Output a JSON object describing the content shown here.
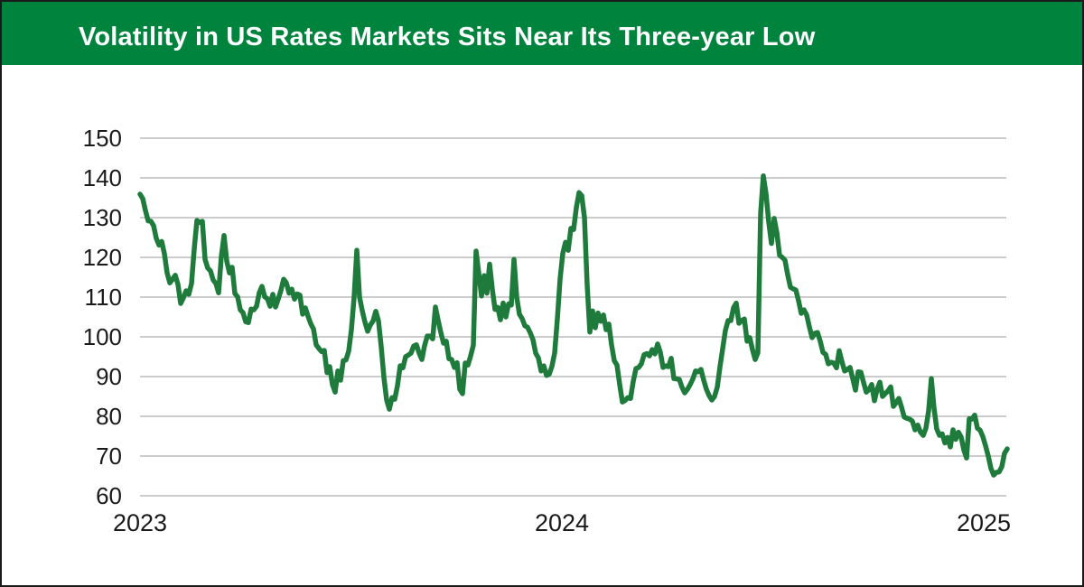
{
  "header": {
    "title": "Volatility in US Rates Markets Sits Near Its Three-year Low",
    "bg_color": "#00843D",
    "text_color": "#FFFFFF"
  },
  "chart_data": {
    "type": "line",
    "title": "Volatility in US Rates Markets Sits Near Its Three-year Low",
    "xlabel": "",
    "ylabel": "",
    "x_axis": {
      "ticks": [
        2023,
        2024,
        2025
      ]
    },
    "y_axis": {
      "ticks": [
        60,
        70,
        80,
        90,
        100,
        110,
        120,
        130,
        140,
        150
      ],
      "min": 60,
      "max": 150
    },
    "grid": {
      "horizontal": true,
      "vertical": false,
      "color": "#CCCCCC"
    },
    "legend": "none",
    "axis_text_color": "#1A1A1A",
    "series": {
      "color": "#1E7B3B",
      "x_start_year": 2023.0,
      "x_step_years": 0.006424,
      "values": [
        135.9,
        134.8,
        131.8,
        129.2,
        129.1,
        128.0,
        124.8,
        123.1,
        124.0,
        120.9,
        116.1,
        113.6,
        114.5,
        115.5,
        113.2,
        108.4,
        109.8,
        111.6,
        110.7,
        113.4,
        122.1,
        129.3,
        128.8,
        129.1,
        119.5,
        117.3,
        116.6,
        114.3,
        113.4,
        111.1,
        120.2,
        125.5,
        119.1,
        116.1,
        117.5,
        110.9,
        110.1,
        106.8,
        106.1,
        103.8,
        103.6,
        107.0,
        106.8,
        107.7,
        111.1,
        112.7,
        110.1,
        109.6,
        107.7,
        110.7,
        107.5,
        109.5,
        111.7,
        114.5,
        113.6,
        111.0,
        112.0,
        109.5,
        110.8,
        110.5,
        105.7,
        107.3,
        105.2,
        103.3,
        102.0,
        98.0,
        97.1,
        96.3,
        96.6,
        91.0,
        92.5,
        88.0,
        86.1,
        91.4,
        89.1,
        94.0,
        94.2,
        96.4,
        101.8,
        110.0,
        121.8,
        110.0,
        106.6,
        103.7,
        101.4,
        103.0,
        104.0,
        106.4,
        104.0,
        97.5,
        89.8,
        84.1,
        81.8,
        84.7,
        84.3,
        87.7,
        92.7,
        92.2,
        95.0,
        95.4,
        95.9,
        97.7,
        98.0,
        95.9,
        94.3,
        97.8,
        100.2,
        100.2,
        99.5,
        107.5,
        104.2,
        101.1,
        98.4,
        98.9,
        94.5,
        94.3,
        92.3,
        93.5,
        86.8,
        85.7,
        93.4,
        92.9,
        95.2,
        97.9,
        121.6,
        116.0,
        110.3,
        115.4,
        111.0,
        118.3,
        112.0,
        106.9,
        107.4,
        104.3,
        108.5,
        105.0,
        108.3,
        108.0,
        119.5,
        110.0,
        105.7,
        104.6,
        102.8,
        102.4,
        101.0,
        99.3,
        95.9,
        94.7,
        91.4,
        92.7,
        90.3,
        90.6,
        92.6,
        95.9,
        104.5,
        114.5,
        121.0,
        123.8,
        121.8,
        127.3,
        127.0,
        132.5,
        136.3,
        135.5,
        130.0,
        113.0,
        101.2,
        106.5,
        102.3,
        106.0,
        103.9,
        105.5,
        101.8,
        103.2,
        98.0,
        94.0,
        92.9,
        88.0,
        83.6,
        84.0,
        84.7,
        84.5,
        88.8,
        92.0,
        92.3,
        93.2,
        95.5,
        95.8,
        95.2,
        96.8,
        95.7,
        98.2,
        96.1,
        92.3,
        92.7,
        92.5,
        94.6,
        89.5,
        89.4,
        89.3,
        87.3,
        85.9,
        86.8,
        88.0,
        89.4,
        91.4,
        91.2,
        91.8,
        89.1,
        86.8,
        85.2,
        84.1,
        85.0,
        87.3,
        92.4,
        97.0,
        101.6,
        104.1,
        104.1,
        107.3,
        108.5,
        103.4,
        104.1,
        104.5,
        98.9,
        99.8,
        96.8,
        94.3,
        96.0,
        131.0,
        140.5,
        136.0,
        128.9,
        123.5,
        129.8,
        126.2,
        120.5,
        120.0,
        119.3,
        115.6,
        112.5,
        112.1,
        111.8,
        109.1,
        105.9,
        106.8,
        105.5,
        102.5,
        99.8,
        100.9,
        101.1,
        98.9,
        96.1,
        95.6,
        93.2,
        93.6,
        93.4,
        92.2,
        96.5,
        93.8,
        91.4,
        91.8,
        92.3,
        89.5,
        86.6,
        91.2,
        91.1,
        88.5,
        86.1,
        86.7,
        88.0,
        83.9,
        86.8,
        88.6,
        85.0,
        85.7,
        86.4,
        87.4,
        82.5,
        83.4,
        84.5,
        82.3,
        79.8,
        79.5,
        79.3,
        78.8,
        76.6,
        77.8,
        76.0,
        75.2,
        77.0,
        81.4,
        89.5,
        82.0,
        76.8,
        75.2,
        75.6,
        73.3,
        74.7,
        72.3,
        76.6,
        74.2,
        76.0,
        74.8,
        71.5,
        69.5,
        79.4,
        79.3,
        80.3,
        77.0,
        76.5,
        74.9,
        72.6,
        70.0,
        66.9,
        65.2,
        65.9,
        66.0,
        67.3,
        70.7,
        71.8
      ]
    }
  }
}
